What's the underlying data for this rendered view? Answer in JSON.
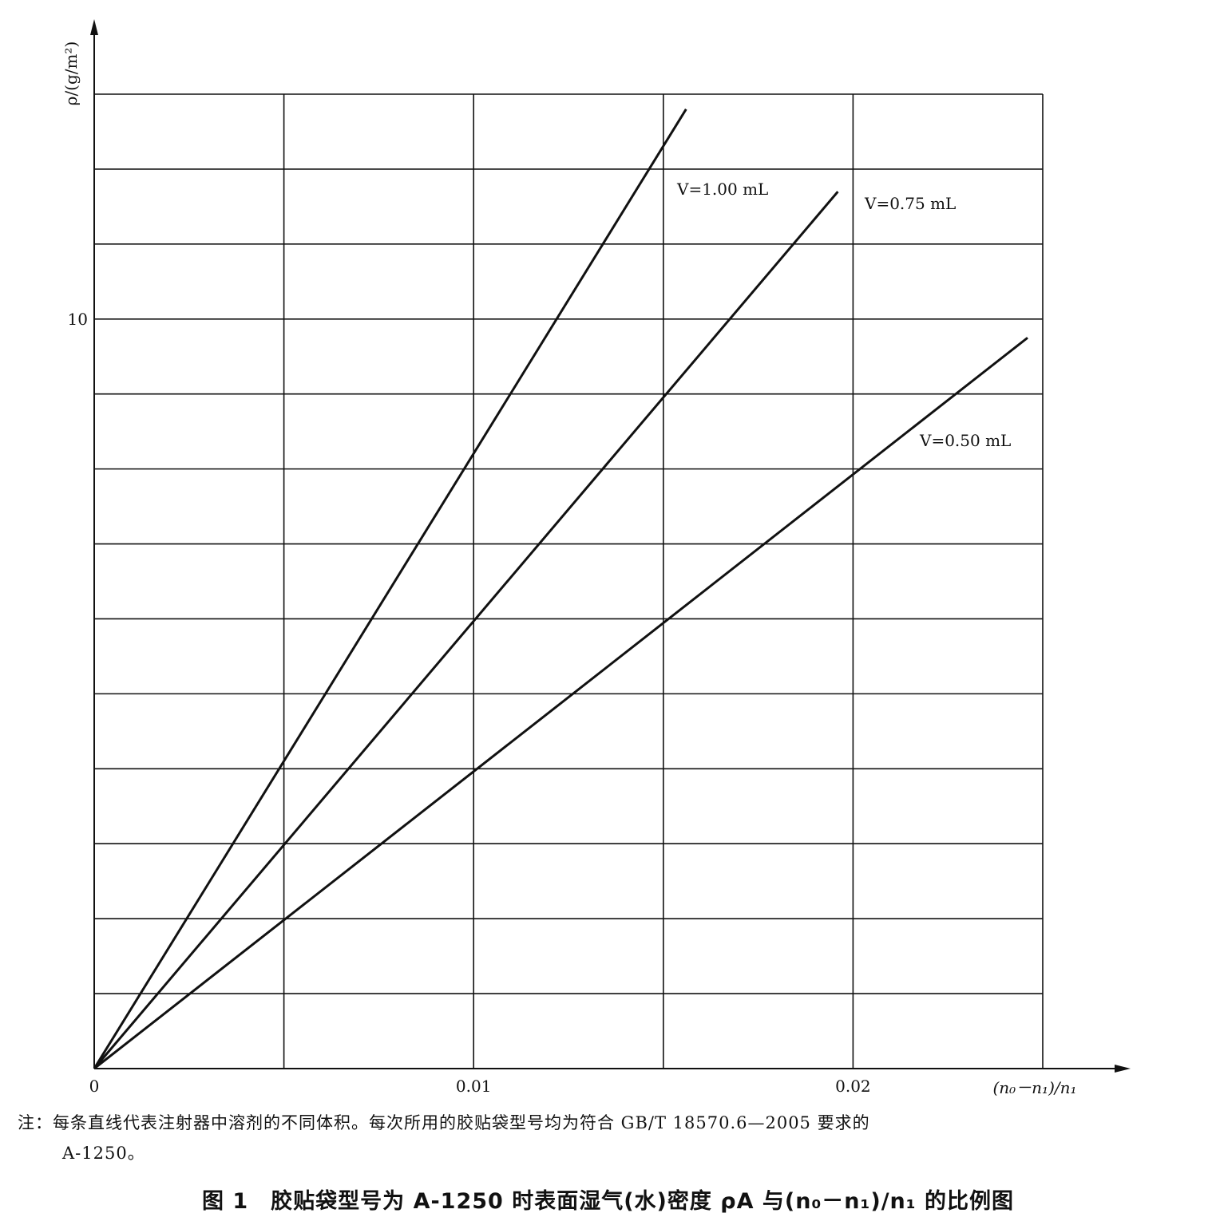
{
  "chart_data": {
    "type": "line",
    "xlabel": "(n₀－n₁)/n₁",
    "ylabel": "ρ/(g/m²)",
    "xlim": [
      0,
      0.025
    ],
    "ylim": [
      0,
      13
    ],
    "x_ticks": [
      0,
      0.01,
      0.02
    ],
    "x_tick_labels": [
      "0",
      "0.01",
      "0.02"
    ],
    "y_ticks": [
      10
    ],
    "y_tick_labels": [
      "10"
    ],
    "grid": true,
    "series": [
      {
        "name": "V=1.00 mL",
        "x": [
          0,
          0.0156
        ],
        "y": [
          0,
          12.8
        ]
      },
      {
        "name": "V=0.75 mL",
        "x": [
          0,
          0.0196
        ],
        "y": [
          0,
          11.7
        ]
      },
      {
        "name": "V=0.50 mL",
        "x": [
          0,
          0.0246
        ],
        "y": [
          0,
          9.75
        ]
      }
    ]
  },
  "note": {
    "line1": "注：每条直线代表注射器中溶剂的不同体积。每次所用的胶贴袋型号均为符合 GB/T 18570.6—2005 要求的",
    "line2": "A-1250。"
  },
  "caption": "图 1　胶贴袋型号为 A-1250 时表面湿气(水)密度 ρA 与(n₀－n₁)/n₁ 的比例图"
}
